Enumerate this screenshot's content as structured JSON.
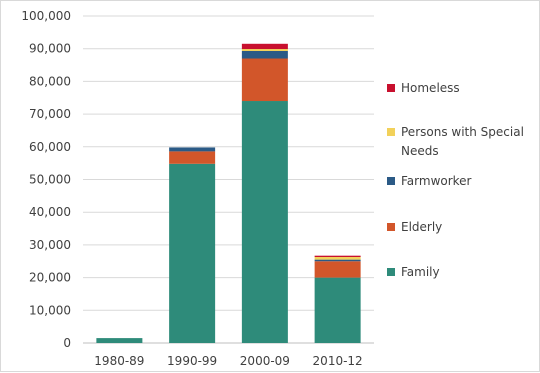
{
  "chart_data": {
    "type": "bar",
    "stacked": true,
    "categories": [
      "1980-89",
      "1990-99",
      "2000-09",
      "2010-12"
    ],
    "series": [
      {
        "name": "Family",
        "color": "#2e8b7a",
        "values": [
          1500,
          54800,
          74000,
          20000
        ]
      },
      {
        "name": "Elderly",
        "color": "#d2562a",
        "values": [
          0,
          3800,
          13000,
          5000
        ]
      },
      {
        "name": "Farmworker",
        "color": "#2b5a86",
        "values": [
          0,
          1200,
          2300,
          500
        ]
      },
      {
        "name": "Persons with Special Needs",
        "color": "#f2d15a",
        "values": [
          0,
          0,
          600,
          800
        ]
      },
      {
        "name": "Homeless",
        "color": "#c8102e",
        "values": [
          0,
          0,
          1600,
          400
        ]
      }
    ],
    "legend_order": [
      "Homeless",
      "Persons with Special Needs",
      "Farmworker",
      "Elderly",
      "Family"
    ],
    "legend_position": "right",
    "ylim": [
      0,
      100000
    ],
    "yticks": [
      0,
      10000,
      20000,
      30000,
      40000,
      50000,
      60000,
      70000,
      80000,
      90000,
      100000
    ],
    "ytick_labels": [
      "0",
      "10,000",
      "20,000",
      "30,000",
      "40,000",
      "50,000",
      "60,000",
      "70,000",
      "80,000",
      "90,000",
      "100,000"
    ],
    "grid": true
  }
}
